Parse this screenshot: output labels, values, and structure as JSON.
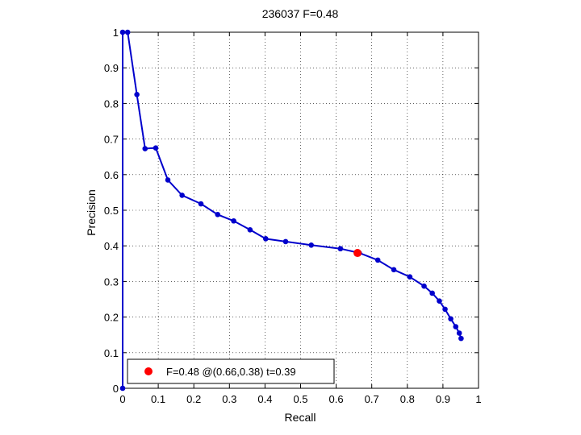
{
  "chart_data": {
    "type": "line",
    "title": "236037 F=0.48",
    "xlabel": "Recall",
    "ylabel": "Precision",
    "xlim": [
      0,
      1
    ],
    "ylim": [
      0,
      1
    ],
    "xticks": [
      "0",
      "0.1",
      "0.2",
      "0.3",
      "0.4",
      "0.5",
      "0.6",
      "0.7",
      "0.8",
      "0.9",
      "1"
    ],
    "yticks": [
      "0",
      "0.1",
      "0.2",
      "0.3",
      "0.4",
      "0.5",
      "0.6",
      "0.7",
      "0.8",
      "0.9",
      "1"
    ],
    "grid": true,
    "legend_position": "bottom-left",
    "series": [
      {
        "color": "#0000cc",
        "x": [
          0.0,
          0.0,
          0.014,
          0.04,
          0.063,
          0.093,
          0.127,
          0.167,
          0.22,
          0.267,
          0.312,
          0.358,
          0.402,
          0.458,
          0.53,
          0.612,
          0.665,
          0.717,
          0.762,
          0.807,
          0.847,
          0.87,
          0.89,
          0.906,
          0.922,
          0.936,
          0.946,
          0.951
        ],
        "y": [
          0.0,
          1.0,
          1.0,
          0.825,
          0.673,
          0.675,
          0.585,
          0.542,
          0.518,
          0.488,
          0.47,
          0.445,
          0.42,
          0.412,
          0.402,
          0.392,
          0.38,
          0.36,
          0.333,
          0.313,
          0.287,
          0.267,
          0.245,
          0.222,
          0.195,
          0.173,
          0.155,
          0.14
        ]
      }
    ],
    "marker": {
      "x": 0.66,
      "y": 0.38,
      "color": "#ff0000",
      "label": "F=0.48 @(0.66,0.38) t=0.39"
    }
  }
}
